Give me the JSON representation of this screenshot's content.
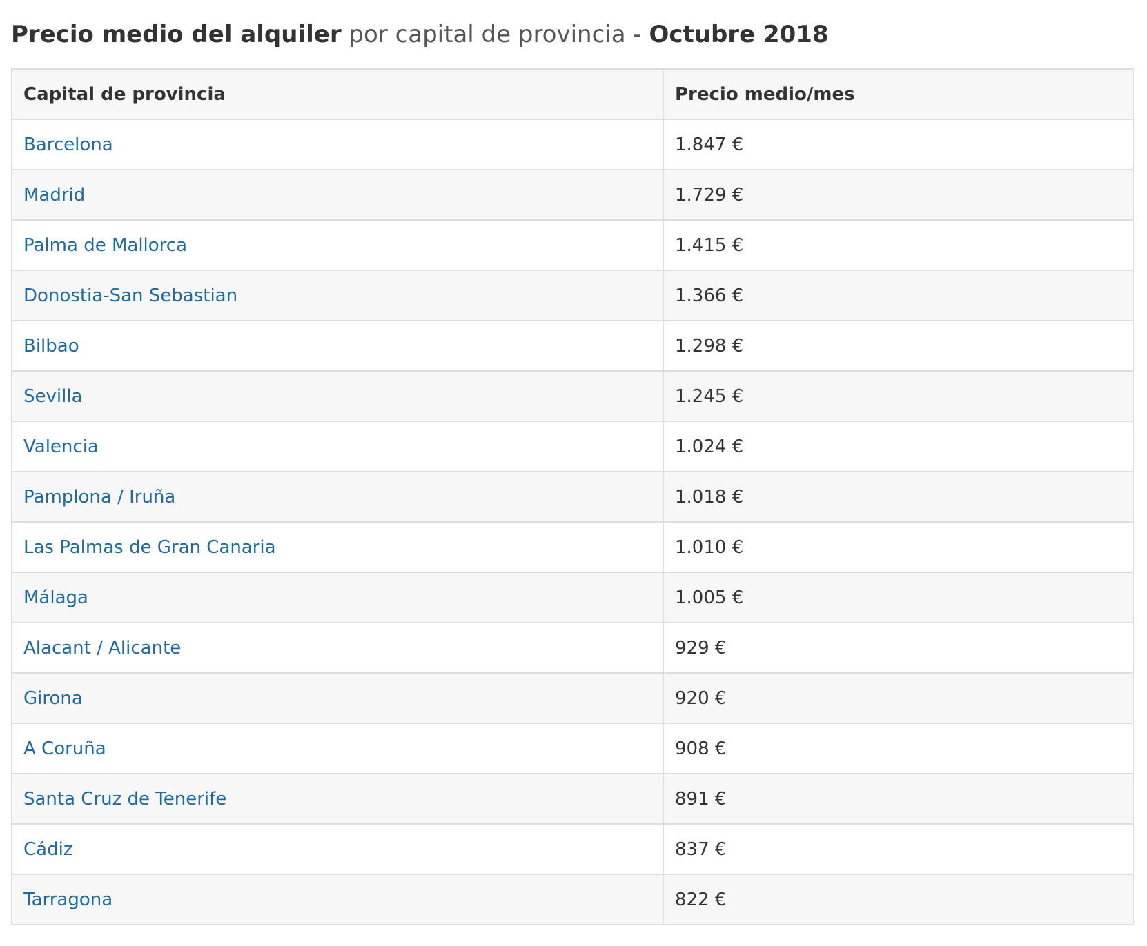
{
  "title": {
    "part1": "Precio medio del alquiler",
    "part2": " por capital de provincia - ",
    "part3": "Octubre 2018"
  },
  "colors": {
    "link": "#1f6aa5",
    "text": "#333333",
    "border": "#dddddd",
    "stripe": "#f7f7f7"
  },
  "chart_data": {
    "type": "table",
    "title": "Precio medio del alquiler por capital de provincia - Octubre 2018",
    "columns": [
      "Capital de provincia",
      "Precio medio/mes"
    ],
    "rows": [
      [
        "Barcelona",
        "1.847 €"
      ],
      [
        "Madrid",
        "1.729 €"
      ],
      [
        "Palma de Mallorca",
        "1.415 €"
      ],
      [
        "Donostia-San Sebastian",
        "1.366 €"
      ],
      [
        "Bilbao",
        "1.298 €"
      ],
      [
        "Sevilla",
        "1.245 €"
      ],
      [
        "Valencia",
        "1.024 €"
      ],
      [
        "Pamplona / Iruña",
        "1.018 €"
      ],
      [
        "Las Palmas de Gran Canaria",
        "1.010 €"
      ],
      [
        "Málaga",
        "1.005 €"
      ],
      [
        "Alacant / Alicante",
        "929 €"
      ],
      [
        "Girona",
        "920 €"
      ],
      [
        "A Coruña",
        "908 €"
      ],
      [
        "Santa Cruz de Tenerife",
        "891 €"
      ],
      [
        "Cádiz",
        "837 €"
      ],
      [
        "Tarragona",
        "822 €"
      ]
    ]
  }
}
